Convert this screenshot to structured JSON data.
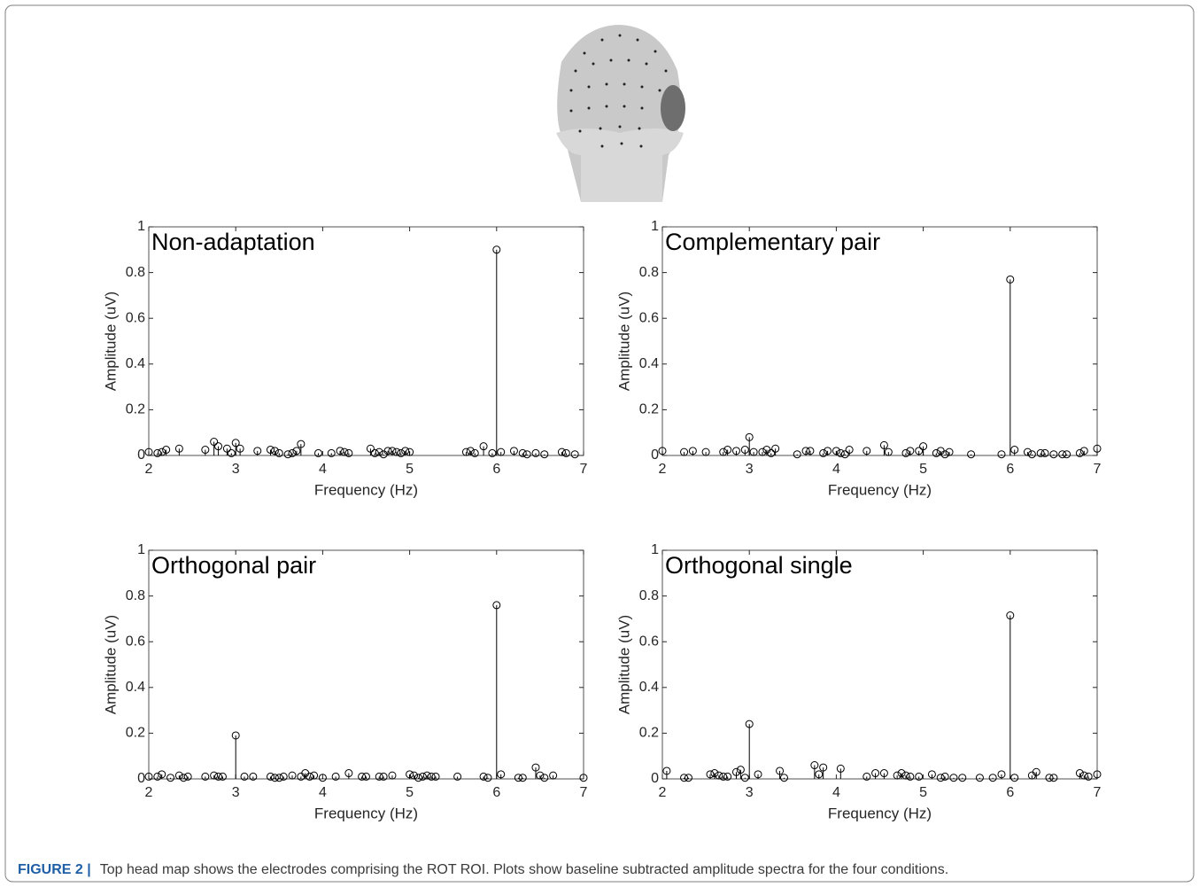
{
  "chart_data": [
    {
      "type": "stem",
      "title": "Non-adaptation",
      "xlabel": "Frequency (Hz)",
      "ylabel": "Amplitude (uV)",
      "color": "#000000",
      "xlim": [
        2,
        7
      ],
      "ylim": [
        0,
        1
      ],
      "xticks": [
        2,
        3,
        4,
        5,
        6,
        7
      ],
      "yticks": [
        0,
        0.2,
        0.4,
        0.6,
        0.8,
        1
      ],
      "x": [
        2,
        2.1,
        2.15,
        2.2,
        2.35,
        2.65,
        2.75,
        2.8,
        2.9,
        2.95,
        3,
        3.05,
        3.25,
        3.4,
        3.45,
        3.5,
        3.6,
        3.65,
        3.7,
        3.75,
        3.95,
        4.1,
        4.2,
        4.25,
        4.3,
        4.55,
        4.6,
        4.65,
        4.7,
        4.75,
        4.8,
        4.85,
        4.9,
        4.95,
        5,
        5.65,
        5.7,
        5.75,
        5.85,
        5.95,
        6,
        6.05,
        6.2,
        6.3,
        6.35,
        6.45,
        6.55,
        6.75,
        6.8,
        6.9
      ],
      "values": [
        0.015,
        0.01,
        0.015,
        0.025,
        0.03,
        0.025,
        0.06,
        0.04,
        0.03,
        0.01,
        0.055,
        0.03,
        0.02,
        0.025,
        0.02,
        0.01,
        0.005,
        0.01,
        0.02,
        0.05,
        0.01,
        0.01,
        0.02,
        0.015,
        0.01,
        0.03,
        0.01,
        0.015,
        0.005,
        0.02,
        0.02,
        0.015,
        0.01,
        0.02,
        0.015,
        0.015,
        0.02,
        0.01,
        0.04,
        0.01,
        0.9,
        0.015,
        0.02,
        0.01,
        0.005,
        0.01,
        0.005,
        0.015,
        0.01,
        0.005
      ]
    },
    {
      "type": "stem",
      "title": "Complementary pair",
      "xlabel": "Frequency (Hz)",
      "ylabel": "Amplitude (uV)",
      "color": "#000000",
      "xlim": [
        2,
        7
      ],
      "ylim": [
        0,
        1
      ],
      "xticks": [
        2,
        3,
        4,
        5,
        6,
        7
      ],
      "yticks": [
        0,
        0.2,
        0.4,
        0.6,
        0.8,
        1
      ],
      "x": [
        2,
        2.25,
        2.35,
        2.5,
        2.7,
        2.75,
        2.85,
        2.95,
        3,
        3.05,
        3.15,
        3.2,
        3.25,
        3.3,
        3.55,
        3.65,
        3.7,
        3.85,
        3.9,
        4,
        4.05,
        4.1,
        4.15,
        4.35,
        4.55,
        4.6,
        4.8,
        4.85,
        4.95,
        5,
        5.15,
        5.2,
        5.25,
        5.3,
        5.55,
        5.9,
        6,
        6.05,
        6.2,
        6.25,
        6.35,
        6.4,
        6.5,
        6.6,
        6.65,
        6.8,
        6.85,
        7
      ],
      "values": [
        0.02,
        0.015,
        0.02,
        0.015,
        0.015,
        0.025,
        0.02,
        0.025,
        0.08,
        0.015,
        0.015,
        0.025,
        0.01,
        0.03,
        0.005,
        0.02,
        0.02,
        0.01,
        0.02,
        0.02,
        0.01,
        0.005,
        0.025,
        0.02,
        0.045,
        0.015,
        0.01,
        0.02,
        0.02,
        0.04,
        0.01,
        0.02,
        0.005,
        0.015,
        0.005,
        0.005,
        0.77,
        0.025,
        0.015,
        0.005,
        0.01,
        0.01,
        0.005,
        0.005,
        0.005,
        0.01,
        0.02,
        0.03
      ]
    },
    {
      "type": "stem",
      "title": "Orthogonal pair",
      "xlabel": "Frequency (Hz)",
      "ylabel": "Amplitude (uV)",
      "color": "#000000",
      "xlim": [
        2,
        7
      ],
      "ylim": [
        0,
        1
      ],
      "xticks": [
        2,
        3,
        4,
        5,
        6,
        7
      ],
      "yticks": [
        0,
        0.2,
        0.4,
        0.6,
        0.8,
        1
      ],
      "x": [
        2,
        2.1,
        2.15,
        2.25,
        2.35,
        2.4,
        2.45,
        2.65,
        2.75,
        2.8,
        2.85,
        3,
        3.1,
        3.2,
        3.4,
        3.45,
        3.5,
        3.55,
        3.65,
        3.75,
        3.8,
        3.85,
        3.9,
        4,
        4.15,
        4.3,
        4.45,
        4.5,
        4.65,
        4.7,
        4.8,
        5,
        5.05,
        5.1,
        5.15,
        5.2,
        5.25,
        5.3,
        5.55,
        5.85,
        5.9,
        6,
        6.05,
        6.25,
        6.3,
        6.45,
        6.5,
        6.55,
        6.65,
        7
      ],
      "values": [
        0.01,
        0.01,
        0.02,
        0.005,
        0.015,
        0.005,
        0.01,
        0.01,
        0.015,
        0.01,
        0.01,
        0.19,
        0.01,
        0.01,
        0.01,
        0.005,
        0.005,
        0.01,
        0.015,
        0.01,
        0.025,
        0.01,
        0.015,
        0.005,
        0.01,
        0.025,
        0.01,
        0.01,
        0.01,
        0.01,
        0.015,
        0.02,
        0.015,
        0.005,
        0.01,
        0.015,
        0.01,
        0.01,
        0.01,
        0.01,
        0.005,
        0.76,
        0.02,
        0.005,
        0.005,
        0.05,
        0.015,
        0.005,
        0.015,
        0.005
      ]
    },
    {
      "type": "stem",
      "title": "Orthogonal single",
      "xlabel": "Frequency (Hz)",
      "ylabel": "Amplitude (uV)",
      "color": "#000000",
      "xlim": [
        2,
        7
      ],
      "ylim": [
        0,
        1
      ],
      "xticks": [
        2,
        3,
        4,
        5,
        6,
        7
      ],
      "yticks": [
        0,
        0.2,
        0.4,
        0.6,
        0.8,
        1
      ],
      "x": [
        2.05,
        2.25,
        2.3,
        2.55,
        2.6,
        2.65,
        2.7,
        2.75,
        2.85,
        2.9,
        2.95,
        3,
        3.1,
        3.35,
        3.4,
        3.75,
        3.8,
        3.85,
        4.05,
        4.35,
        4.45,
        4.55,
        4.7,
        4.75,
        4.8,
        4.85,
        4.95,
        5.1,
        5.2,
        5.25,
        5.35,
        5.45,
        5.65,
        5.8,
        5.9,
        6,
        6.05,
        6.25,
        6.3,
        6.45,
        6.5,
        6.8,
        6.85,
        6.9,
        7
      ],
      "values": [
        0.035,
        0.005,
        0.005,
        0.02,
        0.025,
        0.015,
        0.01,
        0.01,
        0.03,
        0.04,
        0.005,
        0.24,
        0.02,
        0.035,
        0.005,
        0.06,
        0.02,
        0.05,
        0.045,
        0.01,
        0.025,
        0.025,
        0.015,
        0.025,
        0.015,
        0.01,
        0.01,
        0.02,
        0.005,
        0.01,
        0.005,
        0.005,
        0.005,
        0.005,
        0.02,
        0.715,
        0.005,
        0.015,
        0.03,
        0.005,
        0.005,
        0.025,
        0.015,
        0.01,
        0.02
      ]
    }
  ],
  "caption": {
    "label": "FIGURE 2 |",
    "text": "Top head map shows the electrodes comprising the ROT ROI. Plots show baseline subtracted amplitude spectra for the four conditions."
  }
}
